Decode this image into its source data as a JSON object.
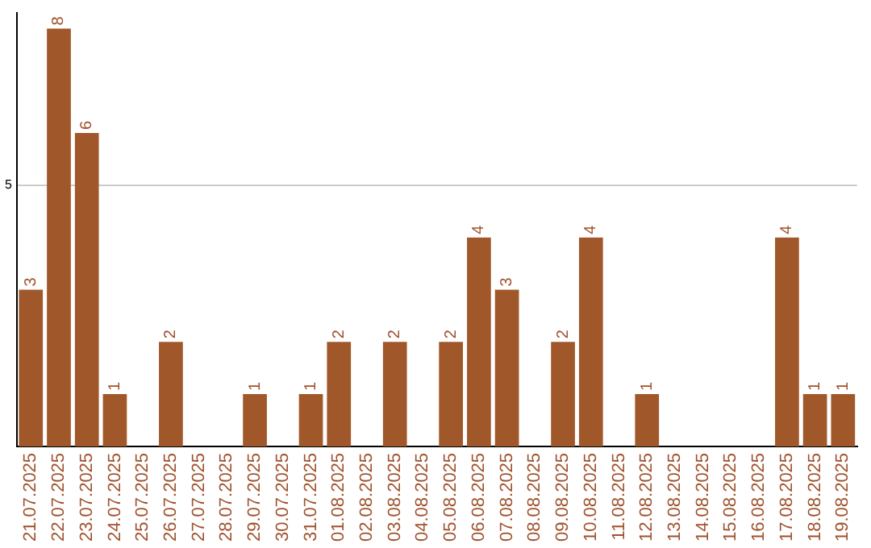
{
  "chart_data": {
    "type": "bar",
    "categories": [
      "21.07.2025",
      "22.07.2025",
      "23.07.2025",
      "24.07.2025",
      "25.07.2025",
      "26.07.2025",
      "27.07.2025",
      "28.07.2025",
      "29.07.2025",
      "30.07.2025",
      "31.07.2025",
      "01.08.2025",
      "02.08.2025",
      "03.08.2025",
      "04.08.2025",
      "05.08.2025",
      "06.08.2025",
      "07.08.2025",
      "08.08.2025",
      "09.08.2025",
      "10.08.2025",
      "11.08.2025",
      "12.08.2025",
      "13.08.2025",
      "14.08.2025",
      "15.08.2025",
      "16.08.2025",
      "17.08.2025",
      "18.08.2025",
      "19.08.2025"
    ],
    "values": [
      3,
      8,
      6,
      1,
      0,
      2,
      0,
      0,
      1,
      0,
      1,
      2,
      0,
      2,
      0,
      2,
      4,
      3,
      0,
      2,
      4,
      0,
      1,
      0,
      0,
      0,
      0,
      4,
      1,
      1
    ],
    "value_labels": [
      "3",
      "8",
      "6",
      "1",
      null,
      "2",
      null,
      null,
      "1",
      null,
      "1",
      "2",
      null,
      "2",
      null,
      "2",
      "4",
      "3",
      null,
      "2",
      "4",
      null,
      "1",
      null,
      null,
      null,
      null,
      "4",
      "1",
      "1"
    ],
    "color": "#a0582a",
    "ylim": [
      0,
      8.3
    ],
    "yticks": [
      5
    ],
    "grid": "y",
    "legend": false
  }
}
